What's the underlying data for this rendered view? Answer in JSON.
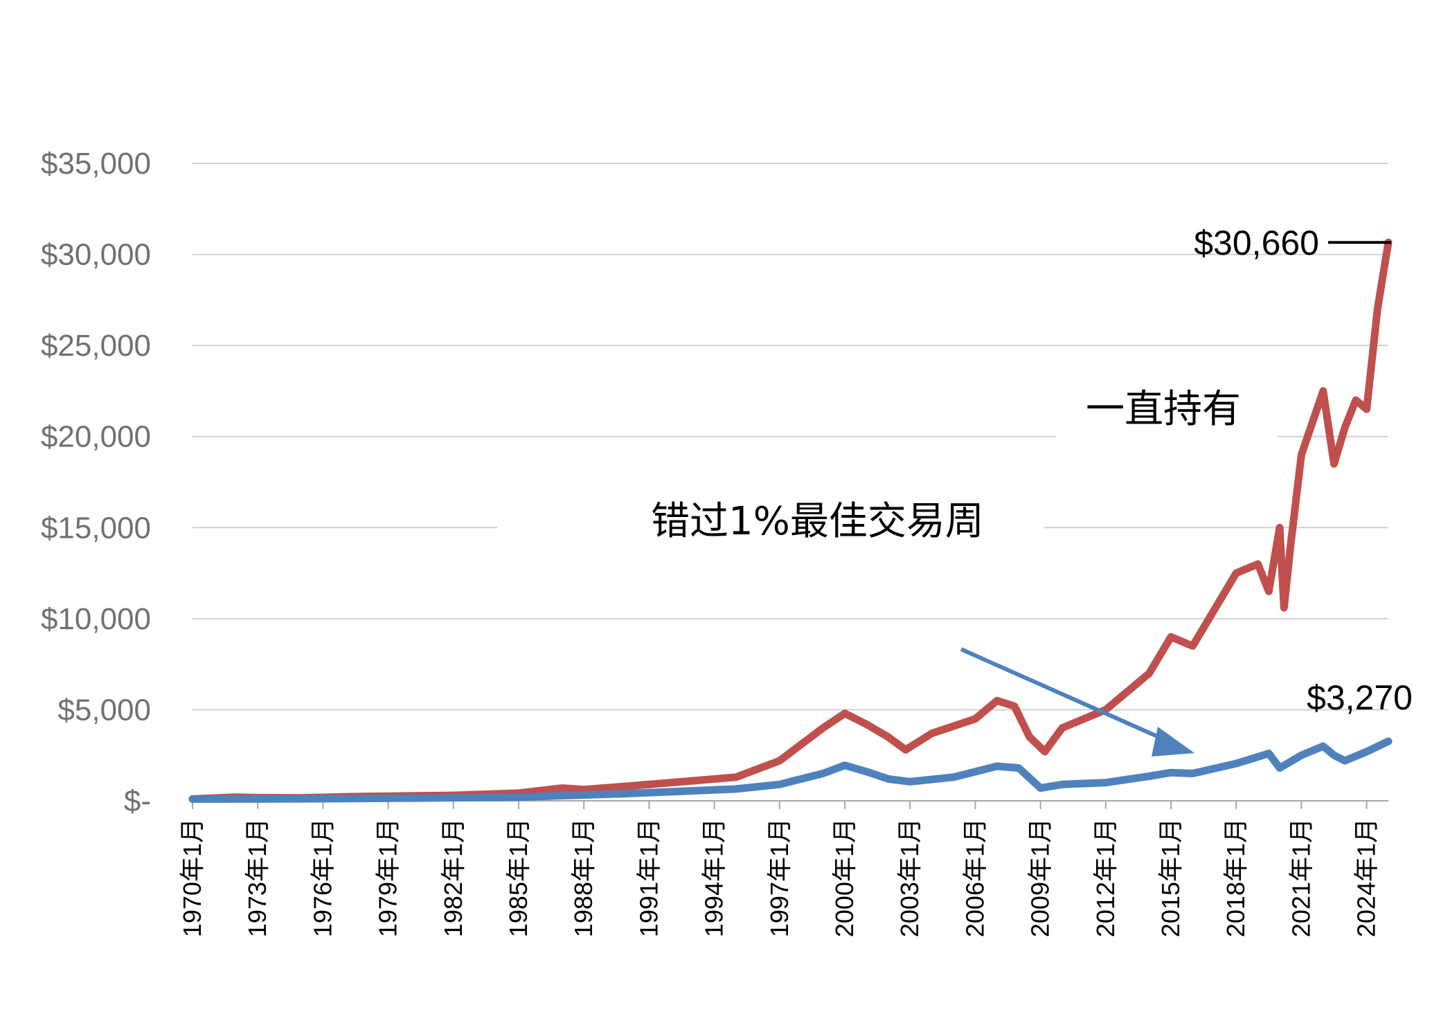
{
  "chart_data": {
    "type": "line",
    "ylim": [
      0,
      35000
    ],
    "y_ticks": [
      "$35,000",
      "$30,000",
      "$25,000",
      "$20,000",
      "$15,000",
      "$10,000",
      "$5,000",
      "$-"
    ],
    "y_tick_values": [
      35000,
      30000,
      25000,
      20000,
      15000,
      10000,
      5000,
      0
    ],
    "x_tick_labels": [
      "1970年1月",
      "1973年1月",
      "1976年1月",
      "1979年1月",
      "1982年1月",
      "1985年1月",
      "1988年1月",
      "1991年1月",
      "1994年1月",
      "1997年1月",
      "2000年1月",
      "2003年1月",
      "2006年1月",
      "2009年1月",
      "2012年1月",
      "2015年1月",
      "2018年1月",
      "2021年1月",
      "2024年1月"
    ],
    "x_tick_years": [
      1970,
      1973,
      1976,
      1979,
      1982,
      1985,
      1988,
      1991,
      1994,
      1997,
      2000,
      2003,
      2006,
      2009,
      2012,
      2015,
      2018,
      2021,
      2024
    ],
    "xlim": [
      1970,
      2025.0
    ],
    "grid": true,
    "series": [
      {
        "color": "#C0504D",
        "x": [
          1970,
          1972,
          1973,
          1975,
          1977,
          1980,
          1982,
          1985,
          1987,
          1988,
          1990,
          1993,
          1995,
          1997,
          1999,
          2000,
          2001,
          2002,
          2002.8,
          2004,
          2006,
          2007,
          2007.8,
          2008.5,
          2009.2,
          2010,
          2011,
          2012,
          2014,
          2015,
          2016,
          2017,
          2018,
          2019,
          2019.5,
          2020,
          2020.2,
          2020.5,
          2021,
          2022,
          2022.5,
          2023,
          2023.5,
          2024,
          2024.5,
          2025
        ],
        "y": [
          100,
          200,
          170,
          160,
          220,
          270,
          300,
          420,
          700,
          620,
          800,
          1100,
          1300,
          2200,
          4000,
          4800,
          4200,
          3500,
          2800,
          3700,
          4500,
          5500,
          5200,
          3500,
          2700,
          4000,
          4500,
          5000,
          7000,
          9000,
          8500,
          10500,
          12500,
          13000,
          11500,
          15000,
          10600,
          14000,
          19000,
          22500,
          18500,
          20500,
          22000,
          21500,
          27000,
          30660
        ]
      },
      {
        "color": "#4F81BD",
        "x": [
          1970,
          1975,
          1980,
          1985,
          1990,
          1995,
          1997,
          1999,
          2000,
          2001,
          2002,
          2003,
          2005,
          2007,
          2008,
          2009,
          2010,
          2012,
          2014,
          2015,
          2016,
          2018,
          2019.5,
          2020,
          2021,
          2022,
          2022.5,
          2023,
          2024,
          2025
        ],
        "y": [
          100,
          110,
          150,
          200,
          400,
          650,
          900,
          1500,
          1950,
          1600,
          1200,
          1050,
          1300,
          1900,
          1800,
          700,
          900,
          1000,
          1350,
          1550,
          1500,
          2050,
          2600,
          1800,
          2500,
          3000,
          2500,
          2200,
          2700,
          3270
        ]
      }
    ],
    "annotations": {
      "hold_label": "一直持有",
      "missed_label": "错过1%最佳交易周",
      "end_red": "$30,660",
      "end_blue": "$3,270"
    }
  }
}
